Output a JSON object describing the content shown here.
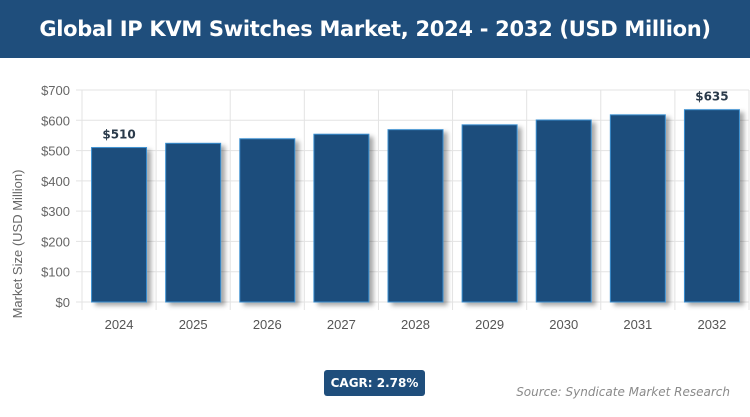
{
  "title": "Global IP KVM Switches Market, 2024 - 2032 (USD Million)",
  "cagr_label": "CAGR: 2.78%",
  "source": "Source: Syndicate Market Research",
  "colors": {
    "bar": "#1f4e7c",
    "bar_edge": "#3a8fd0",
    "header": "#1f4e7c"
  },
  "chart_data": {
    "type": "bar",
    "title": "Global IP KVM Switches Market, 2024 - 2032 (USD Million)",
    "xlabel": "",
    "ylabel": "Market Size (USD Million)",
    "categories": [
      "2024",
      "2025",
      "2026",
      "2027",
      "2028",
      "2029",
      "2030",
      "2031",
      "2032"
    ],
    "values": [
      510,
      524,
      539,
      554,
      569,
      585,
      601,
      618,
      635
    ],
    "data_labels": {
      "0": "$510",
      "8": "$635"
    },
    "ylim": [
      0,
      700
    ],
    "yticks": [
      "$0",
      "$100",
      "$200",
      "$300",
      "$400",
      "$500",
      "$600",
      "$700"
    ],
    "grid": true,
    "legend": "none"
  }
}
